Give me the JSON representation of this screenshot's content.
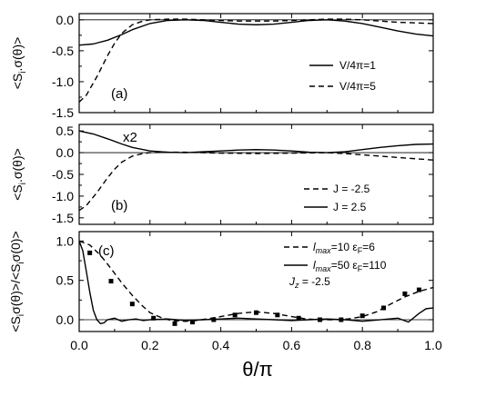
{
  "figure": {
    "xaxis": {
      "ticks": [
        "0.0",
        "0.2",
        "0.4",
        "0.6",
        "0.8",
        "1.0"
      ],
      "label": "θ/π",
      "range": [
        0,
        1
      ]
    }
  },
  "chart_data": [
    {
      "type": "line",
      "panel_label": "(a)",
      "ylabel": "<S",
      "ylabel_sub": "i",
      "ylabel_rest": ".σ(θ)>",
      "xlim": [
        0,
        1
      ],
      "ylim": [
        -1.5,
        0.1
      ],
      "yticks": [
        "0.0",
        "-0.5",
        "-1.0",
        "-1.5"
      ],
      "ytick_values": [
        0,
        -0.5,
        -1.0,
        -1.5
      ],
      "zero_line": true,
      "legend_position": "right",
      "series": [
        {
          "name": "V/4π=1",
          "style": "solid",
          "x": [
            0,
            0.04,
            0.08,
            0.12,
            0.15,
            0.2,
            0.25,
            0.3,
            0.35,
            0.4,
            0.45,
            0.5,
            0.55,
            0.6,
            0.65,
            0.7,
            0.75,
            0.8,
            0.85,
            0.9,
            0.95,
            1.0
          ],
          "y": [
            -0.41,
            -0.39,
            -0.33,
            -0.24,
            -0.16,
            -0.06,
            -0.01,
            0.0,
            -0.01,
            -0.04,
            -0.07,
            -0.08,
            -0.07,
            -0.04,
            -0.01,
            0.0,
            -0.02,
            -0.06,
            -0.12,
            -0.18,
            -0.23,
            -0.26
          ]
        },
        {
          "name": "V/4π=5",
          "style": "dashed",
          "x": [
            0,
            0.02,
            0.05,
            0.08,
            0.1,
            0.12,
            0.15,
            0.18,
            0.2,
            0.25,
            0.3,
            0.35,
            0.4,
            0.45,
            0.5,
            0.55,
            0.6,
            0.65,
            0.7,
            0.75,
            0.8,
            0.85,
            0.9,
            0.95,
            1.0
          ],
          "y": [
            -1.33,
            -1.22,
            -0.92,
            -0.58,
            -0.38,
            -0.22,
            -0.08,
            -0.02,
            0.0,
            0.01,
            0.01,
            0.0,
            -0.01,
            -0.02,
            -0.02,
            -0.02,
            -0.01,
            0.0,
            0.01,
            0.01,
            0.0,
            -0.02,
            -0.04,
            -0.05,
            -0.06
          ]
        }
      ]
    },
    {
      "type": "line",
      "panel_label": "(b)",
      "annotation": "x2",
      "ylabel": "<S",
      "ylabel_sub": "i",
      "ylabel_rest": ".σ(θ)>",
      "xlim": [
        0,
        1
      ],
      "ylim": [
        -1.65,
        0.65
      ],
      "yticks": [
        "0.5",
        "0.0",
        "-0.5",
        "-1.0",
        "-1.5"
      ],
      "ytick_values": [
        0.5,
        0,
        -0.5,
        -1.0,
        -1.5
      ],
      "zero_line": true,
      "legend_position": "bottom-right",
      "series": [
        {
          "name": "J = -2.5",
          "style": "dashed",
          "x": [
            0,
            0.02,
            0.05,
            0.08,
            0.1,
            0.12,
            0.15,
            0.18,
            0.2,
            0.25,
            0.3,
            0.35,
            0.4,
            0.5,
            0.6,
            0.7,
            0.75,
            0.8,
            0.85,
            0.9,
            0.95,
            1.0
          ],
          "y": [
            -1.33,
            -1.22,
            -0.92,
            -0.58,
            -0.38,
            -0.22,
            -0.08,
            -0.02,
            0.0,
            0.01,
            0.01,
            0.0,
            -0.01,
            -0.02,
            -0.01,
            0.0,
            -0.02,
            -0.05,
            -0.08,
            -0.11,
            -0.14,
            -0.17
          ]
        },
        {
          "name": "J = 2.5",
          "style": "solid",
          "x": [
            0,
            0.04,
            0.08,
            0.12,
            0.15,
            0.2,
            0.25,
            0.3,
            0.35,
            0.4,
            0.45,
            0.5,
            0.55,
            0.6,
            0.65,
            0.7,
            0.75,
            0.8,
            0.85,
            0.9,
            0.95,
            1.0
          ],
          "y": [
            0.5,
            0.43,
            0.32,
            0.2,
            0.12,
            0.04,
            0.01,
            0.0,
            0.02,
            0.04,
            0.06,
            0.07,
            0.06,
            0.04,
            0.01,
            0.0,
            0.02,
            0.07,
            0.12,
            0.16,
            0.19,
            0.2
          ]
        }
      ]
    },
    {
      "type": "line",
      "panel_label": "(c)",
      "ylabel": "<S",
      "ylabel_sub": "i",
      "ylabel_rest": "σ(θ)>/<S",
      "ylabel_sub2": "i",
      "ylabel_rest2": "σ(0)>",
      "xlim": [
        0,
        1
      ],
      "ylim": [
        -0.15,
        1.12
      ],
      "yticks": [
        "1.0",
        "0.5",
        "0.0"
      ],
      "ytick_values": [
        1.0,
        0.5,
        0.0
      ],
      "zero_line": true,
      "legend_position": "top-right",
      "note_main": "J",
      "note_sub": "z",
      "note_rest": " = -2.5",
      "series": [
        {
          "name_main": "l",
          "name_sub": "max",
          "name_rest": "=10 ε",
          "name_sub2": "F",
          "name_rest2": "=6",
          "style": "dashed",
          "x": [
            0,
            0.03,
            0.06,
            0.09,
            0.12,
            0.15,
            0.18,
            0.2,
            0.23,
            0.26,
            0.3,
            0.33,
            0.36,
            0.4,
            0.45,
            0.5,
            0.55,
            0.6,
            0.64,
            0.68,
            0.72,
            0.76,
            0.8,
            0.84,
            0.88,
            0.92,
            0.96,
            1.0
          ],
          "y": [
            1.0,
            0.95,
            0.82,
            0.65,
            0.47,
            0.31,
            0.17,
            0.09,
            0.03,
            -0.01,
            -0.02,
            -0.01,
            0.01,
            0.04,
            0.08,
            0.1,
            0.08,
            0.04,
            0.01,
            0.0,
            0.0,
            0.01,
            0.04,
            0.1,
            0.2,
            0.29,
            0.36,
            0.41
          ]
        },
        {
          "name_main": "l",
          "name_sub": "max",
          "name_rest": "=50 ε",
          "name_sub2": "F",
          "name_rest2": "=110",
          "style": "solid",
          "x": [
            0,
            0.01,
            0.02,
            0.03,
            0.04,
            0.05,
            0.06,
            0.07,
            0.08,
            0.1,
            0.12,
            0.14,
            0.16,
            0.18,
            0.2,
            0.25,
            0.3,
            0.35,
            0.4,
            0.45,
            0.5,
            0.55,
            0.6,
            0.65,
            0.7,
            0.75,
            0.8,
            0.85,
            0.9,
            0.93,
            0.96,
            0.98,
            1.0
          ],
          "y": [
            1.0,
            0.88,
            0.62,
            0.35,
            0.12,
            0.0,
            -0.05,
            -0.04,
            0.0,
            0.02,
            -0.02,
            0.0,
            0.01,
            -0.01,
            0.0,
            0.01,
            -0.01,
            0.0,
            0.01,
            0.02,
            0.01,
            0.0,
            -0.01,
            0.0,
            0.01,
            0.0,
            -0.02,
            0.0,
            0.02,
            -0.03,
            0.08,
            0.14,
            0.15
          ]
        },
        {
          "name": "",
          "style": "markers",
          "x": [
            0.03,
            0.09,
            0.15,
            0.21,
            0.27,
            0.32,
            0.38,
            0.44,
            0.5,
            0.56,
            0.62,
            0.68,
            0.74,
            0.8,
            0.86,
            0.92,
            0.96
          ],
          "y": [
            0.85,
            0.49,
            0.2,
            0.02,
            -0.05,
            -0.03,
            0.0,
            0.06,
            0.09,
            0.06,
            0.02,
            0.0,
            0.0,
            0.05,
            0.15,
            0.33,
            0.38
          ]
        }
      ]
    }
  ]
}
